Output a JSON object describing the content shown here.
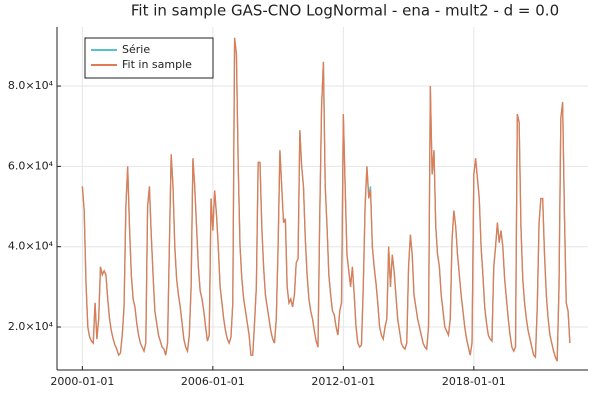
{
  "chart_data": {
    "type": "line",
    "title": "Fit in sample GAS-CNO LogNormal - ena - mult2 - d = 0.0",
    "x": [
      "2000-01",
      "2000-02",
      "2000-03",
      "2000-04",
      "2000-05",
      "2000-06",
      "2000-07",
      "2000-08",
      "2000-09",
      "2000-10",
      "2000-11",
      "2000-12",
      "2001-01",
      "2001-02",
      "2001-03",
      "2001-04",
      "2001-05",
      "2001-06",
      "2001-07",
      "2001-08",
      "2001-09",
      "2001-10",
      "2001-11",
      "2001-12",
      "2002-01",
      "2002-02",
      "2002-03",
      "2002-04",
      "2002-05",
      "2002-06",
      "2002-07",
      "2002-08",
      "2002-09",
      "2002-10",
      "2002-11",
      "2002-12",
      "2003-01",
      "2003-02",
      "2003-03",
      "2003-04",
      "2003-05",
      "2003-06",
      "2003-07",
      "2003-08",
      "2003-09",
      "2003-10",
      "2003-11",
      "2003-12",
      "2004-01",
      "2004-02",
      "2004-03",
      "2004-04",
      "2004-05",
      "2004-06",
      "2004-07",
      "2004-08",
      "2004-09",
      "2004-10",
      "2004-11",
      "2004-12",
      "2005-01",
      "2005-02",
      "2005-03",
      "2005-04",
      "2005-05",
      "2005-06",
      "2005-07",
      "2005-08",
      "2005-09",
      "2005-10",
      "2005-11",
      "2005-12",
      "2006-01",
      "2006-02",
      "2006-03",
      "2006-04",
      "2006-05",
      "2006-06",
      "2006-07",
      "2006-08",
      "2006-09",
      "2006-10",
      "2006-11",
      "2006-12",
      "2007-01",
      "2007-02",
      "2007-03",
      "2007-04",
      "2007-05",
      "2007-06",
      "2007-07",
      "2007-08",
      "2007-09",
      "2007-10",
      "2007-11",
      "2007-12",
      "2008-01",
      "2008-02",
      "2008-03",
      "2008-04",
      "2008-05",
      "2008-06",
      "2008-07",
      "2008-08",
      "2008-09",
      "2008-10",
      "2008-11",
      "2008-12",
      "2009-01",
      "2009-02",
      "2009-03",
      "2009-04",
      "2009-05",
      "2009-06",
      "2009-07",
      "2009-08",
      "2009-09",
      "2009-10",
      "2009-11",
      "2009-12",
      "2010-01",
      "2010-02",
      "2010-03",
      "2010-04",
      "2010-05",
      "2010-06",
      "2010-07",
      "2010-08",
      "2010-09",
      "2010-10",
      "2010-11",
      "2010-12",
      "2011-01",
      "2011-02",
      "2011-03",
      "2011-04",
      "2011-05",
      "2011-06",
      "2011-07",
      "2011-08",
      "2011-09",
      "2011-10",
      "2011-11",
      "2011-12",
      "2012-01",
      "2012-02",
      "2012-03",
      "2012-04",
      "2012-05",
      "2012-06",
      "2012-07",
      "2012-08",
      "2012-09",
      "2012-10",
      "2012-11",
      "2012-12",
      "2013-01",
      "2013-02",
      "2013-03",
      "2013-04",
      "2013-05",
      "2013-06",
      "2013-07",
      "2013-08",
      "2013-09",
      "2013-10",
      "2013-11",
      "2013-12",
      "2014-01",
      "2014-02",
      "2014-03",
      "2014-04",
      "2014-05",
      "2014-06",
      "2014-07",
      "2014-08",
      "2014-09",
      "2014-10",
      "2014-11",
      "2014-12",
      "2015-01",
      "2015-02",
      "2015-03",
      "2015-04",
      "2015-05",
      "2015-06",
      "2015-07",
      "2015-08",
      "2015-09",
      "2015-10",
      "2015-11",
      "2015-12",
      "2016-01",
      "2016-02",
      "2016-03",
      "2016-04",
      "2016-05",
      "2016-06",
      "2016-07",
      "2016-08",
      "2016-09",
      "2016-10",
      "2016-11",
      "2016-12",
      "2017-01",
      "2017-02",
      "2017-03",
      "2017-04",
      "2017-05",
      "2017-06",
      "2017-07",
      "2017-08",
      "2017-09",
      "2017-10",
      "2017-11",
      "2017-12",
      "2018-01",
      "2018-02",
      "2018-03",
      "2018-04",
      "2018-05",
      "2018-06",
      "2018-07",
      "2018-08",
      "2018-09",
      "2018-10",
      "2018-11",
      "2018-12",
      "2019-01",
      "2019-02",
      "2019-03",
      "2019-04",
      "2019-05",
      "2019-06",
      "2019-07",
      "2019-08",
      "2019-09",
      "2019-10",
      "2019-11",
      "2019-12",
      "2020-01",
      "2020-02",
      "2020-03",
      "2020-04",
      "2020-05",
      "2020-06",
      "2020-07",
      "2020-08",
      "2020-09",
      "2020-10",
      "2020-11",
      "2020-12",
      "2021-01",
      "2021-02",
      "2021-03",
      "2021-04",
      "2021-05",
      "2021-06",
      "2021-07",
      "2021-08",
      "2021-09",
      "2021-10",
      "2021-11",
      "2021-12",
      "2022-01",
      "2022-02",
      "2022-03",
      "2022-04",
      "2022-05",
      "2022-06"
    ],
    "series": [
      {
        "name": "Série",
        "color": "#56c2cc",
        "values": [
          55000,
          49000,
          31000,
          20000,
          17500,
          16500,
          16000,
          26000,
          17000,
          22000,
          35000,
          33000,
          34000,
          33000,
          27000,
          22000,
          19000,
          17000,
          15500,
          14500,
          13000,
          13500,
          18000,
          25000,
          50000,
          60000,
          45000,
          33000,
          27000,
          25000,
          21000,
          18000,
          16000,
          15000,
          14000,
          16000,
          50000,
          55000,
          43000,
          33000,
          24000,
          21000,
          18000,
          16500,
          15000,
          14500,
          13000,
          16000,
          40000,
          63000,
          55000,
          40000,
          32000,
          28000,
          25000,
          21000,
          17000,
          15000,
          14000,
          18000,
          30000,
          62000,
          55000,
          45000,
          35000,
          29000,
          27000,
          24000,
          20000,
          16500,
          18000,
          52000,
          44000,
          54000,
          48000,
          40000,
          30000,
          26000,
          22000,
          19000,
          17000,
          16000,
          17500,
          26000,
          92000,
          88000,
          60000,
          40000,
          32000,
          27000,
          24000,
          21000,
          18000,
          13000,
          13000,
          21000,
          30000,
          61000,
          61000,
          45000,
          35000,
          28000,
          25000,
          22000,
          19000,
          17000,
          16000,
          22000,
          40000,
          64000,
          55000,
          46000,
          47000,
          30000,
          26000,
          27000,
          25000,
          28000,
          36000,
          37000,
          69000,
          60000,
          55000,
          42000,
          33000,
          27000,
          24000,
          22000,
          19000,
          16500,
          15000,
          48000,
          75000,
          86000,
          55000,
          45000,
          33000,
          28000,
          24000,
          23000,
          20000,
          18000,
          24000,
          26000,
          73000,
          55000,
          38000,
          34000,
          30000,
          35000,
          28000,
          20000,
          16000,
          15000,
          15500,
          30000,
          50000,
          60000,
          53000,
          55000,
          40000,
          35000,
          31000,
          26000,
          20000,
          18000,
          17000,
          20000,
          22000,
          40000,
          30000,
          38000,
          34000,
          28000,
          22000,
          19000,
          16000,
          15000,
          14500,
          16000,
          35000,
          43000,
          38000,
          28000,
          25000,
          22000,
          20000,
          18000,
          16000,
          15000,
          14500,
          20000,
          80000,
          58000,
          64000,
          45000,
          38000,
          35000,
          28000,
          24000,
          20000,
          19000,
          18000,
          22000,
          42000,
          49000,
          45000,
          38000,
          33000,
          28000,
          24000,
          20000,
          17000,
          15000,
          13000,
          16000,
          58000,
          62000,
          57000,
          52000,
          40000,
          33000,
          25000,
          21000,
          18000,
          17000,
          16500,
          35000,
          40000,
          46000,
          41000,
          44000,
          40000,
          32000,
          27000,
          22000,
          18000,
          15000,
          14000,
          15000,
          73000,
          71000,
          45000,
          32000,
          26000,
          22000,
          19000,
          17000,
          15000,
          13000,
          12500,
          25000,
          46000,
          52000,
          52000,
          38000,
          28000,
          22000,
          18000,
          16000,
          14000,
          12500,
          11500,
          30000,
          72000,
          76000,
          48000,
          26000,
          24000,
          16000
        ]
      },
      {
        "name": "Fit in sample",
        "color": "#e07b54",
        "values": [
          55000,
          49000,
          31000,
          20000,
          17500,
          16500,
          16000,
          26000,
          17000,
          22000,
          35000,
          33000,
          34000,
          33000,
          27000,
          22000,
          19000,
          17000,
          15500,
          14500,
          13000,
          13500,
          18000,
          25000,
          50000,
          60000,
          45000,
          33000,
          27000,
          25000,
          21000,
          18000,
          16000,
          15000,
          14000,
          16000,
          50000,
          55000,
          43000,
          33000,
          24000,
          21000,
          18000,
          16500,
          15000,
          14500,
          13000,
          16000,
          40000,
          63000,
          55000,
          40000,
          32000,
          28000,
          25000,
          21000,
          17000,
          15000,
          14000,
          18000,
          30000,
          62000,
          55000,
          45000,
          35000,
          29000,
          27000,
          24000,
          20000,
          16500,
          18000,
          52000,
          44000,
          54000,
          48000,
          40000,
          30000,
          26000,
          22000,
          19000,
          17000,
          16000,
          17500,
          26000,
          92000,
          88000,
          60000,
          40000,
          32000,
          27000,
          24000,
          21000,
          18000,
          13000,
          13000,
          21000,
          30000,
          61000,
          61000,
          45000,
          35000,
          28000,
          25000,
          22000,
          19000,
          17000,
          16000,
          22000,
          40000,
          64000,
          55000,
          46000,
          47000,
          30000,
          26000,
          27000,
          25000,
          28000,
          36000,
          37000,
          69000,
          60000,
          55000,
          42000,
          33000,
          27000,
          24000,
          22000,
          19000,
          16500,
          15000,
          48000,
          75000,
          86000,
          55000,
          45000,
          33000,
          28000,
          24000,
          23000,
          20000,
          18000,
          24000,
          26000,
          73000,
          55000,
          38000,
          34000,
          30000,
          35000,
          28000,
          20000,
          16000,
          15000,
          15500,
          30000,
          50000,
          60000,
          52000,
          54000,
          40000,
          35000,
          31000,
          26000,
          20000,
          18000,
          17000,
          20000,
          22000,
          40000,
          30000,
          38000,
          34000,
          28000,
          22000,
          19000,
          16000,
          15000,
          14500,
          16000,
          35000,
          43000,
          38000,
          28000,
          25000,
          22000,
          20000,
          18000,
          16000,
          15000,
          14500,
          20000,
          80000,
          58000,
          64000,
          45000,
          38000,
          35000,
          28000,
          24000,
          20000,
          19000,
          18000,
          22000,
          42000,
          49000,
          45000,
          38000,
          33000,
          28000,
          24000,
          20000,
          17000,
          15000,
          13000,
          16000,
          58000,
          62000,
          57000,
          52000,
          40000,
          33000,
          25000,
          21000,
          18000,
          17000,
          16500,
          35000,
          40000,
          46000,
          41000,
          44000,
          40000,
          32000,
          27000,
          22000,
          18000,
          15000,
          14000,
          15000,
          73000,
          71000,
          45000,
          32000,
          26000,
          22000,
          19000,
          17000,
          15000,
          13000,
          12500,
          25000,
          46000,
          52000,
          52000,
          38000,
          28000,
          22000,
          18000,
          16000,
          14000,
          12500,
          11500,
          30000,
          72000,
          76000,
          48000,
          26000,
          24000,
          16000
        ]
      }
    ],
    "xlim": [
      "1998-11",
      "2023-04"
    ],
    "xticks": [
      "2000-01-01",
      "2006-01-01",
      "2012-01-01",
      "2018-01-01"
    ],
    "ylim": [
      9300,
      94700
    ],
    "yticks": [
      {
        "value": 20000,
        "label": "2.0×10⁴"
      },
      {
        "value": 40000,
        "label": "4.0×10⁴"
      },
      {
        "value": 60000,
        "label": "6.0×10⁴"
      },
      {
        "value": 80000,
        "label": "8.0×10⁴"
      }
    ],
    "grid": true,
    "legend": "top-left"
  }
}
